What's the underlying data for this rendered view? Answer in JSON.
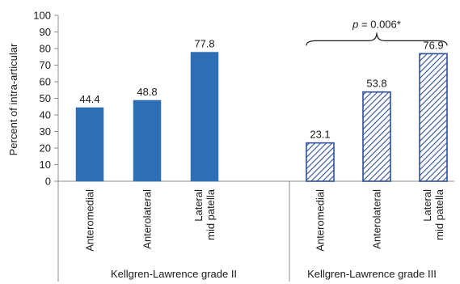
{
  "chart_data": {
    "type": "bar",
    "ylabel": "Percent of intra-articular",
    "ylim": [
      0,
      100
    ],
    "yticks": [
      0,
      10,
      20,
      30,
      40,
      50,
      60,
      70,
      80,
      90,
      100
    ],
    "grid": false,
    "legend": "none",
    "groups": [
      {
        "label": "Kellgren-Lawrence grade II",
        "pattern": "solid",
        "color": "#2e6eb5",
        "categories": [
          [
            "Anteromedial"
          ],
          [
            "Anterolateral"
          ],
          [
            "Lateral",
            "mid patella"
          ]
        ],
        "values": [
          44.4,
          48.8,
          77.8
        ],
        "value_labels": [
          "44.4",
          "48.8",
          "77.8"
        ]
      },
      {
        "label": "Kellgren-Lawrence grade III",
        "pattern": "hatched",
        "color": "#2e4f9a",
        "categories": [
          [
            "Anteromedial"
          ],
          [
            "Anterolateral"
          ],
          [
            "Lateral",
            "mid patella"
          ]
        ],
        "values": [
          23.1,
          53.8,
          76.9
        ],
        "value_labels": [
          "23.1",
          "53.8",
          "76.9"
        ]
      }
    ],
    "annotation": {
      "text_italic": "p",
      "text_rest": " = 0.006*",
      "from_group": 1,
      "from_index": 0,
      "to_group": 1,
      "to_index": 2
    }
  }
}
